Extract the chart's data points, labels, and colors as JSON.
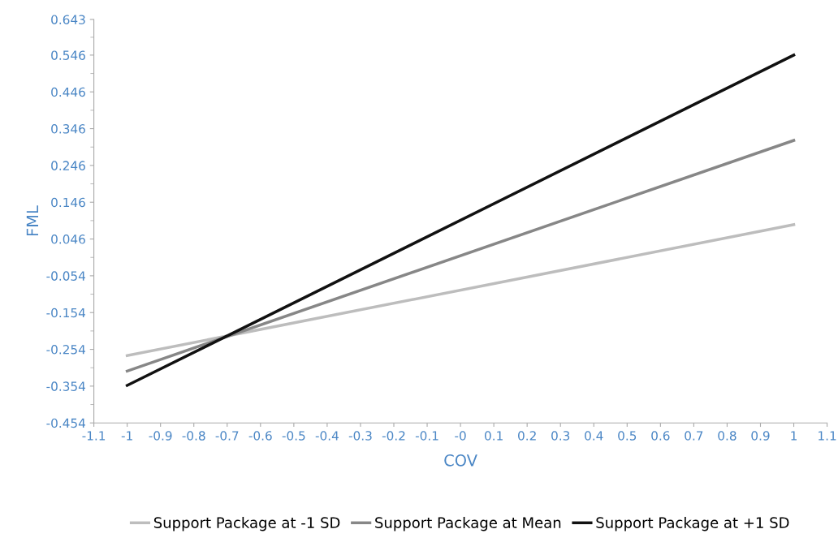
{
  "chart_data": {
    "type": "line",
    "xlabel": "COV",
    "ylabel": "FML",
    "x": [
      -1,
      1
    ],
    "series": [
      {
        "name": "Support Package at -1 SD",
        "color": "#bdbdbd",
        "values": [
          -0.271,
          0.085
        ]
      },
      {
        "name": "Support Package at Mean",
        "color": "#878787",
        "values": [
          -0.313,
          0.314
        ]
      },
      {
        "name": "Support Package at +1 SD",
        "color": "#111111",
        "values": [
          -0.352,
          0.546
        ]
      }
    ],
    "xlim": [
      -1.1,
      1.1
    ],
    "xticks": [
      -1.1,
      -1,
      -0.9,
      -0.8,
      -0.7,
      -0.6,
      -0.5,
      -0.4,
      -0.3,
      -0.2,
      -0.1,
      {
        "value": 0,
        "label": "-0"
      },
      0.1,
      0.2,
      0.3,
      0.4,
      0.5,
      0.6,
      0.7,
      0.8,
      0.9,
      1,
      1.1
    ],
    "ylim": [
      -0.454,
      0.643
    ],
    "yticks": [
      -0.454,
      -0.354,
      -0.254,
      -0.154,
      -0.054,
      0.046,
      0.146,
      0.246,
      0.346,
      0.446,
      0.546,
      0.643
    ],
    "grid": false,
    "legend": "bottom",
    "marker": "none",
    "line_style": "solid"
  }
}
